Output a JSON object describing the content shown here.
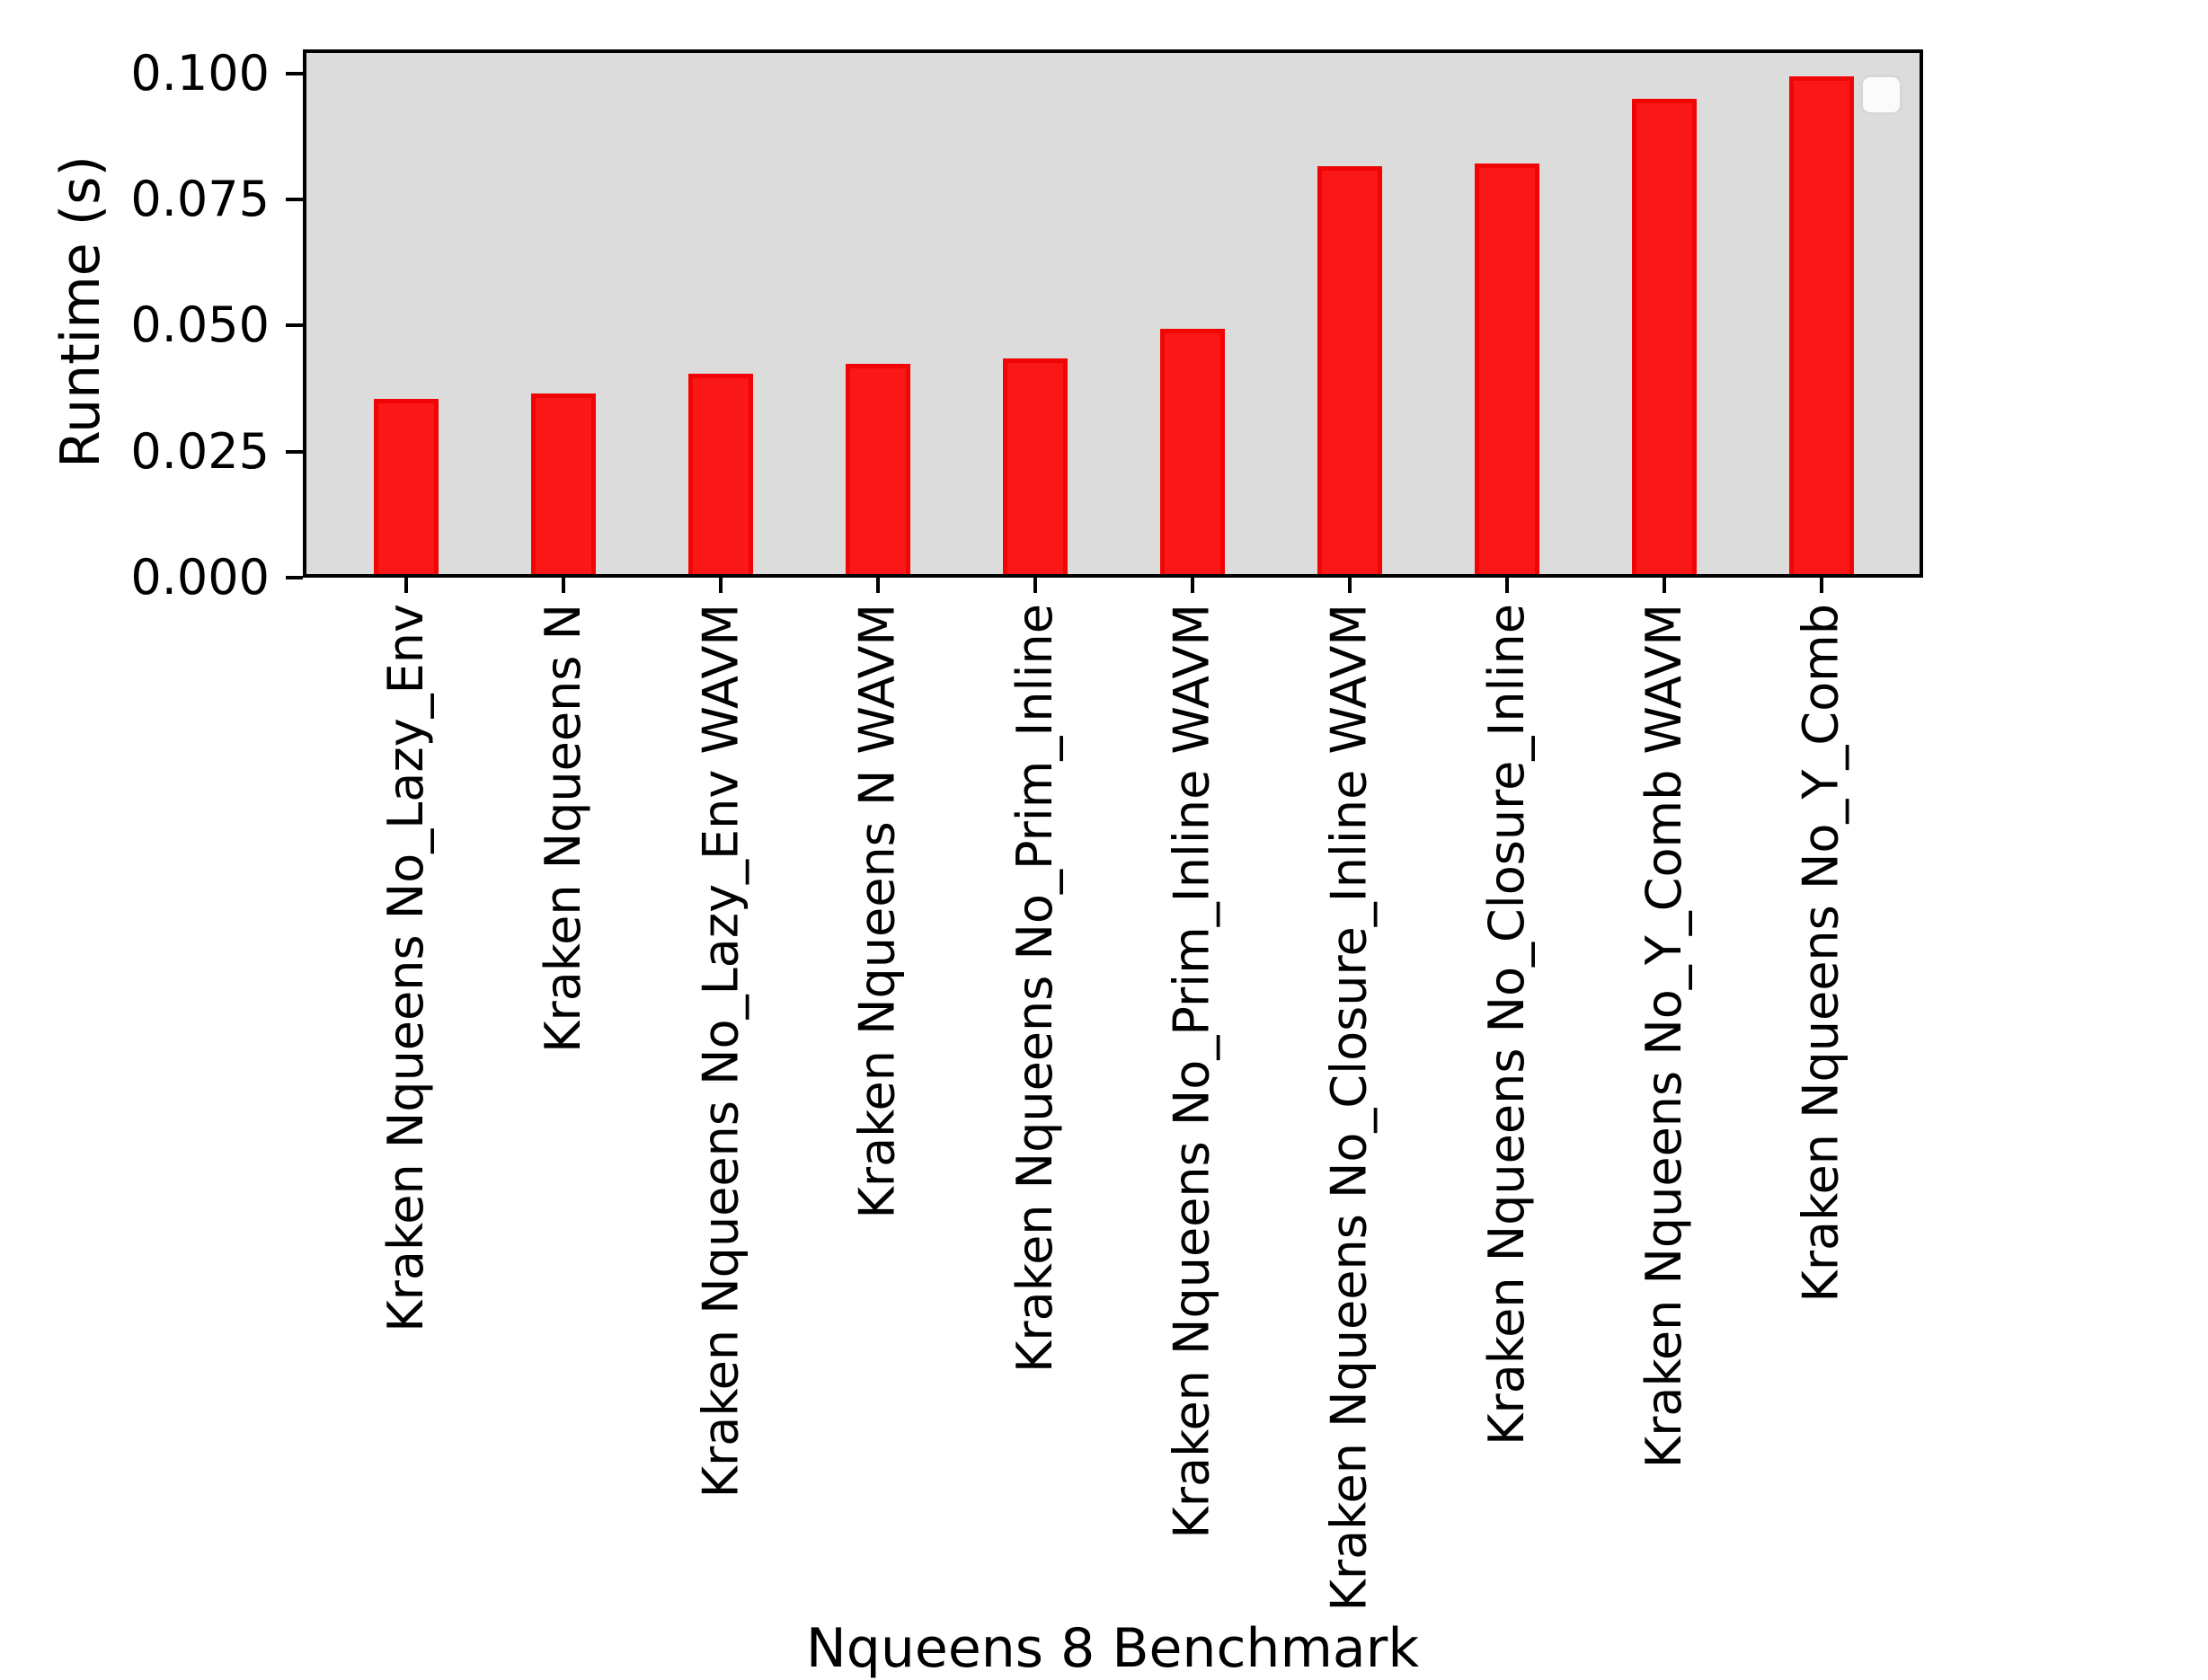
{
  "chart_data": {
    "type": "bar",
    "title": "",
    "xlabel": "Nqueens 8 Benchmark",
    "ylabel": "Runtime (s)",
    "categories": [
      "Kraken Nqueens No_Lazy_Env",
      "Kraken Nqueens N",
      "Kraken Nqueens No_Lazy_Env WAVM",
      "Kraken Nqueens N WAVM",
      "Kraken Nqueens No_Prim_Inline",
      "Kraken Nqueens No_Prim_Inline WAVM",
      "Kraken Nqueens No_Closure_Inline WAVM",
      "Kraken Nqueens No_Closure_Inline",
      "Kraken Nqueens No_Y_Comb WAVM",
      "Kraken Nqueens No_Y_Comb"
    ],
    "values": [
      0.035,
      0.036,
      0.04,
      0.042,
      0.043,
      0.049,
      0.0815,
      0.082,
      0.095,
      0.0995
    ],
    "yticks": [
      0.0,
      0.025,
      0.05,
      0.075,
      0.1
    ],
    "ytick_labels": [
      "0.000",
      "0.025",
      "0.050",
      "0.075",
      "0.100"
    ],
    "ylim": [
      0,
      0.105
    ],
    "grid": false,
    "legend": {
      "visible": true,
      "entries": [],
      "position": "upper right"
    },
    "colors": {
      "bar_face": "#f91717",
      "bar_edge": "#f10404",
      "plot_bg": "#dcdcdc",
      "figure_bg": "#ffffff",
      "spine": "#000000",
      "legend_bg": "#fbfbfb",
      "legend_border": "#d7d7d7"
    }
  }
}
